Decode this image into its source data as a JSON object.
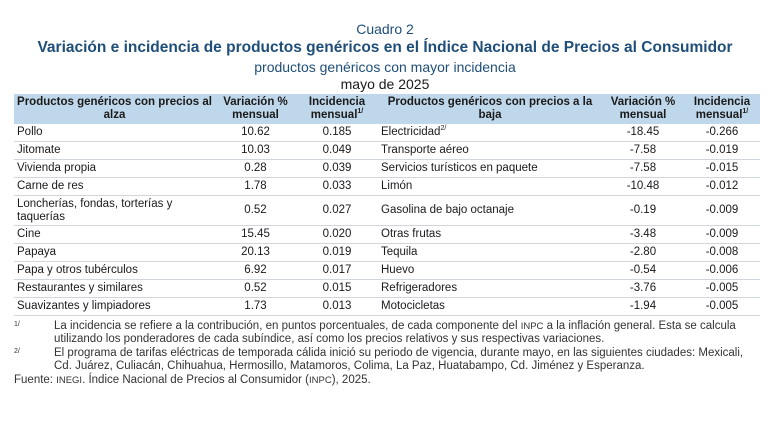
{
  "header": {
    "cuadro": "Cuadro 2",
    "title": "Variación e incidencia de productos genéricos en el Índice Nacional de Precios al Consumidor",
    "subtitle": "productos genéricos con mayor incidencia",
    "period": "mayo de 2025"
  },
  "table": {
    "columns": {
      "left_products": "Productos genéricos con precios al alza",
      "left_variation": "Variación % mensual",
      "left_incidence": "Incidencia mensual",
      "left_incidence_sup": "1/",
      "right_products": "Productos genéricos con precios a la baja",
      "right_variation": "Variación % mensual",
      "right_incidence": "Incidencia mensual",
      "right_incidence_sup": "1/"
    },
    "rows": [
      {
        "lp": "Pollo",
        "lv": "10.62",
        "li": "0.185",
        "rp": "Electricidad",
        "rp_sup": "2/",
        "rv": "-18.45",
        "ri": "-0.266"
      },
      {
        "lp": "Jitomate",
        "lv": "10.03",
        "li": "0.049",
        "rp": "Transporte aéreo",
        "rp_sup": "",
        "rv": "-7.58",
        "ri": "-0.019"
      },
      {
        "lp": "Vivienda propia",
        "lv": "0.28",
        "li": "0.039",
        "rp": "Servicios turísticos en paquete",
        "rp_sup": "",
        "rv": "-7.58",
        "ri": "-0.015"
      },
      {
        "lp": "Carne de res",
        "lv": "1.78",
        "li": "0.033",
        "rp": "Limón",
        "rp_sup": "",
        "rv": "-10.48",
        "ri": "-0.012"
      },
      {
        "lp": "Loncherías, fondas, torterías y taquerías",
        "lv": "0.52",
        "li": "0.027",
        "rp": "Gasolina de bajo octanaje",
        "rp_sup": "",
        "rv": "-0.19",
        "ri": "-0.009"
      },
      {
        "lp": "Cine",
        "lv": "15.45",
        "li": "0.020",
        "rp": "Otras frutas",
        "rp_sup": "",
        "rv": "-3.48",
        "ri": "-0.009"
      },
      {
        "lp": "Papaya",
        "lv": "20.13",
        "li": "0.019",
        "rp": "Tequila",
        "rp_sup": "",
        "rv": "-2.80",
        "ri": "-0.008"
      },
      {
        "lp": "Papa y otros tubérculos",
        "lv": "6.92",
        "li": "0.017",
        "rp": "Huevo",
        "rp_sup": "",
        "rv": "-0.54",
        "ri": "-0.006"
      },
      {
        "lp": "Restaurantes y similares",
        "lv": "0.52",
        "li": "0.015",
        "rp": "Refrigeradores",
        "rp_sup": "",
        "rv": "-3.76",
        "ri": "-0.005"
      },
      {
        "lp": "Suavizantes y limpiadores",
        "lv": "1.73",
        "li": "0.013",
        "rp": "Motocicletas",
        "rp_sup": "",
        "rv": "-1.94",
        "ri": "-0.005"
      }
    ]
  },
  "notes": [
    {
      "mark": "1/",
      "text_before": "La incidencia se refiere a la contribución, en puntos porcentuales, de cada componente del ",
      "abbr": "INPC",
      "text_after": " a la inflación general. Esta se calcula utilizando los ponderadores de cada subíndice, así como los precios relativos y sus respectivas variaciones."
    },
    {
      "mark": "2/",
      "text_before": "El programa de tarifas eléctricas de temporada cálida inició su periodo de vigencia, durante mayo, en las siguientes ciudades: Mexicali, Cd. Juárez, Culiacán, Chihuahua, Hermosillo, Matamoros, Colima, La Paz, Huatabampo, Cd. Jiménez y Esperanza.",
      "abbr": "",
      "text_after": ""
    }
  ],
  "source": {
    "label": "Fuente: ",
    "abbr1": "INEGI",
    "text1": ". Índice Nacional de Precios al Consumidor (",
    "abbr2": "INPC",
    "text2": "), 2025."
  },
  "colors": {
    "title": "#1f4e79",
    "header_bg": "#bfd7ea"
  }
}
